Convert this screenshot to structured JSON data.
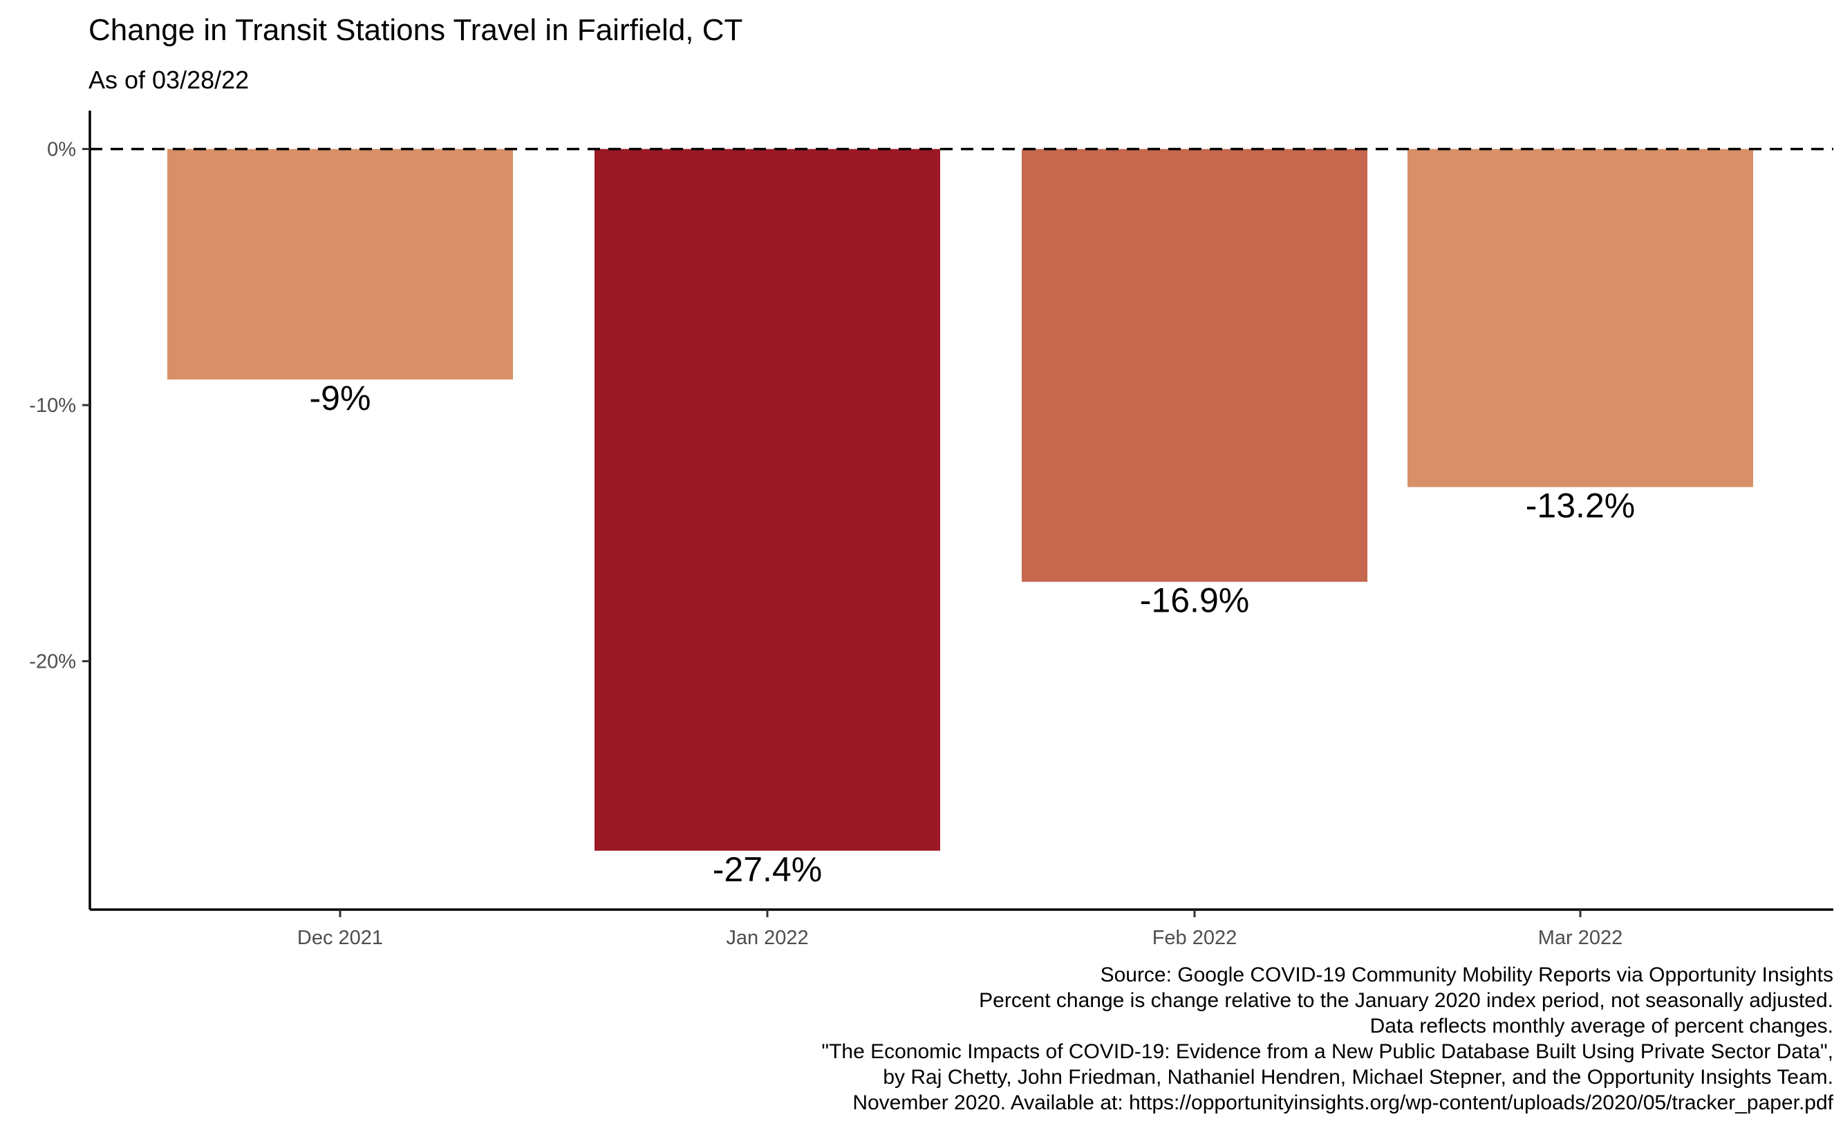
{
  "chart_data": {
    "type": "bar",
    "title": "Change in Transit Stations Travel in Fairfield, CT",
    "subtitle": "As of 03/28/22",
    "categories": [
      "Dec 2021",
      "Jan 2022",
      "Feb 2022",
      "Mar 2022"
    ],
    "values": [
      -9.0,
      -27.4,
      -16.9,
      -13.2
    ],
    "data_labels": [
      "-9%",
      "-27.4%",
      "-16.9%",
      "-13.2%"
    ],
    "bar_colors": [
      "#D89068",
      "#9B1925",
      "#C5684E",
      "#D89068"
    ],
    "ylim": [
      -29.7,
      1.5
    ],
    "yticks": [
      0,
      -10,
      -20
    ],
    "ytick_labels": [
      "0%",
      "-10%",
      "-20%"
    ],
    "reference_line": {
      "value": 0,
      "style": "dashed"
    },
    "xlabel": "",
    "ylabel": "",
    "grid": false,
    "legend": "none",
    "caption": [
      "Source: Google COVID-19 Community Mobility Reports via Opportunity Insights",
      "Percent change is change relative to the January 2020 index period, not seasonally adjusted.",
      "Data reflects monthly average of percent changes.",
      "\"The Economic Impacts of COVID-19: Evidence from a New Public Database Built Using Private Sector Data\",",
      "by Raj Chetty, John Friedman, Nathaniel Hendren, Michael Stepner, and the Opportunity Insights Team.",
      "November 2020. Available at: https://opportunityinsights.org/wp-content/uploads/2020/05/tracker_paper.pdf"
    ]
  }
}
